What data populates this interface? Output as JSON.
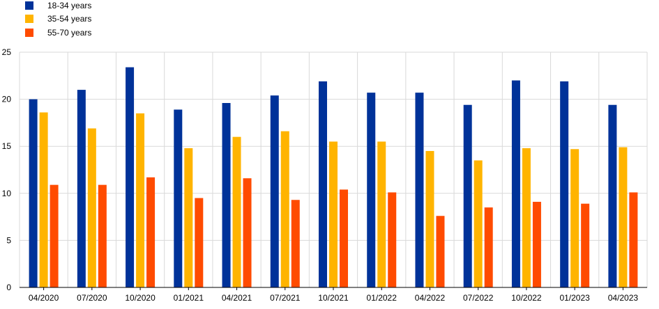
{
  "chart_data": {
    "type": "bar",
    "title": "",
    "xlabel": "",
    "ylabel": "",
    "categories": [
      "04/2020",
      "07/2020",
      "10/2020",
      "01/2021",
      "04/2021",
      "07/2021",
      "10/2021",
      "01/2022",
      "04/2022",
      "07/2022",
      "10/2022",
      "01/2023",
      "04/2023"
    ],
    "series": [
      {
        "name": "18-34 years",
        "color": "#003299",
        "values": [
          20.0,
          21.0,
          23.4,
          18.9,
          19.6,
          20.4,
          21.9,
          20.7,
          20.7,
          19.4,
          22.0,
          21.9,
          19.4
        ]
      },
      {
        "name": "35-54 years",
        "color": "#FFB400",
        "values": [
          18.6,
          16.9,
          18.5,
          14.8,
          16.0,
          16.6,
          15.5,
          15.5,
          14.5,
          13.5,
          14.8,
          14.7,
          14.9
        ]
      },
      {
        "name": "55-70 years",
        "color": "#FF4B00",
        "values": [
          10.9,
          10.9,
          11.7,
          9.5,
          11.6,
          9.3,
          10.4,
          10.1,
          7.6,
          8.5,
          9.1,
          8.9,
          10.1
        ]
      }
    ],
    "ylim": [
      0,
      25
    ],
    "yticks": [
      0,
      5,
      10,
      15,
      20,
      25
    ],
    "grid": true,
    "legend_position": "top-left"
  }
}
